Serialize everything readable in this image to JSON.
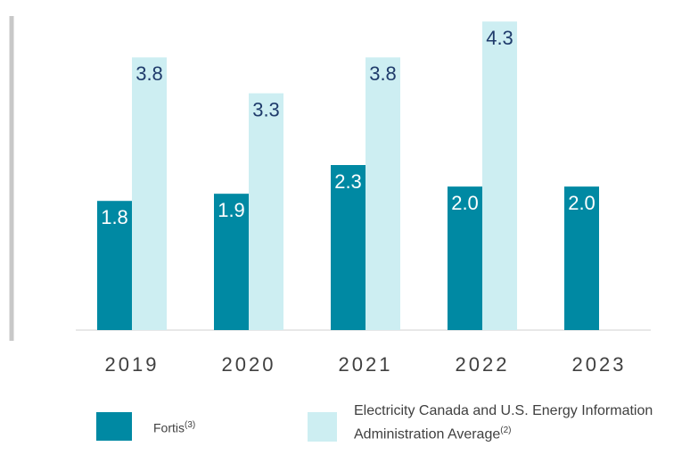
{
  "chart_data": {
    "type": "bar",
    "categories": [
      "2019",
      "2020",
      "2021",
      "2022",
      "2023"
    ],
    "series": [
      {
        "name": "Fortis",
        "footnote": "(3)",
        "color": "#0089a3",
        "values": [
          1.8,
          1.9,
          2.3,
          2,
          2
        ],
        "value_labels": [
          "1.8",
          "1.9",
          "2.3",
          "2.0",
          "2.0"
        ]
      },
      {
        "name": "Electricity Canada and U.S. Energy Information Administration Average",
        "footnote": "(2)",
        "color": "#cdeef2",
        "values": [
          3.8,
          3.3,
          3.8,
          4.3,
          null
        ],
        "value_labels": [
          "3.8",
          "3.3",
          "3.8",
          "4.3",
          null
        ]
      }
    ],
    "ylim": [
      0,
      4.6
    ]
  }
}
